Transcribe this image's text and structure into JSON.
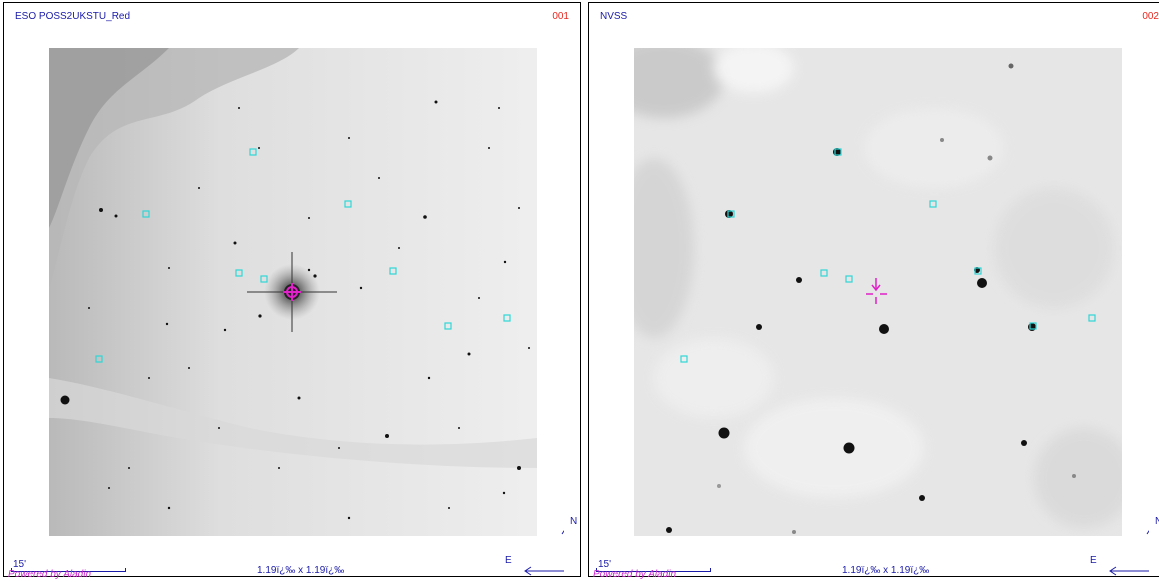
{
  "panels": [
    {
      "survey": "ESO POSS2UKSTU_Red",
      "number": "001",
      "scale": "15'",
      "fov": "1.19ï¿‰ x 1.19ï¿‰",
      "powered_by": "Powered by Aladin",
      "compass_n": "N",
      "compass_e": "E"
    },
    {
      "survey": "NVSS",
      "number": "002",
      "scale": "15'",
      "fov": "1.19ï¿‰ x 1.19ï¿‰",
      "powered_by": "Powered by Aladin",
      "compass_n": "N",
      "compass_e": "E"
    }
  ],
  "colors": {
    "label_blue": "#1a1aa8",
    "number_red": "#e8261e",
    "powered_magenta": "#d028d0",
    "marker_cyan": "#2fd6d6",
    "target_magenta": "#e020c8"
  },
  "icons": {
    "target": "crosshair-icon",
    "compass": "compass-arrows-icon"
  }
}
